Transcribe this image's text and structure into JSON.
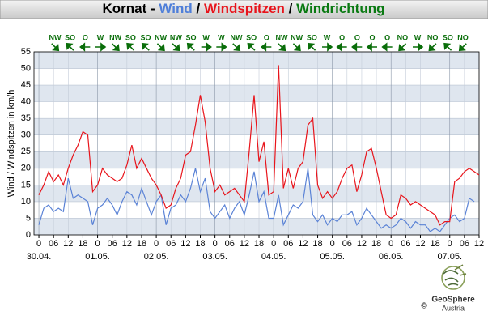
{
  "chart_data": {
    "type": "line",
    "title_parts": [
      {
        "text": "Kornat - ",
        "color": "#000000"
      },
      {
        "text": "Wind",
        "color": "#4f7fd9"
      },
      {
        "text": " / ",
        "color": "#000000"
      },
      {
        "text": "Windspitzen",
        "color": "#e8141b"
      },
      {
        "text": " / ",
        "color": "#000000"
      },
      {
        "text": "Windrichtung",
        "color": "#0a7a12"
      }
    ],
    "y_label": "Wind / Windspitzen in km/h",
    "x": [
      0,
      2,
      4,
      6,
      8,
      10,
      12,
      14,
      16,
      18,
      20,
      22,
      24,
      26,
      28,
      30,
      32,
      34,
      36,
      38,
      40,
      42,
      44,
      46,
      48,
      50,
      52,
      54,
      56,
      58,
      60,
      62,
      64,
      66,
      68,
      70,
      72,
      74,
      76,
      78,
      80,
      82,
      84,
      86,
      88,
      90,
      92,
      94,
      96,
      98,
      100,
      102,
      104,
      106,
      108,
      110,
      112,
      114,
      116,
      118,
      120,
      122,
      124,
      126,
      128,
      130,
      132,
      134,
      136,
      138,
      140,
      142,
      144,
      146,
      148,
      150,
      152,
      154,
      156,
      158,
      160,
      162,
      164,
      166,
      168,
      170,
      172,
      174,
      176,
      178,
      180
    ],
    "series": [
      {
        "name": "Windspitzen",
        "color": "#e8141b",
        "values": [
          12,
          15,
          19,
          16,
          18,
          15,
          20,
          24,
          27,
          31,
          30,
          13,
          15,
          20,
          18,
          17,
          16,
          17,
          21,
          27,
          20,
          23,
          20,
          17,
          15,
          12,
          8,
          9,
          14,
          17,
          24,
          25,
          33,
          42,
          34,
          20,
          13,
          15,
          12,
          13,
          14,
          12,
          10,
          25,
          42,
          22,
          28,
          12,
          13,
          51,
          14,
          20,
          14,
          20,
          22,
          33,
          35,
          15,
          11,
          13,
          11,
          13,
          17,
          20,
          21,
          13,
          18,
          25,
          26,
          20,
          13,
          6,
          5,
          6,
          12,
          11,
          9,
          10,
          9,
          8,
          7,
          6,
          3,
          4,
          4,
          16,
          17,
          19,
          20,
          19,
          18
        ]
      },
      {
        "name": "Wind",
        "color": "#5b83d6",
        "values": [
          3,
          8,
          9,
          7,
          8,
          7,
          17,
          11,
          12,
          11,
          10,
          3,
          8,
          9,
          11,
          9,
          6,
          10,
          13,
          12,
          9,
          14,
          10,
          6,
          10,
          12,
          3,
          8,
          9,
          12,
          10,
          14,
          20,
          13,
          17,
          7,
          5,
          7,
          9,
          5,
          8,
          10,
          6,
          12,
          19,
          10,
          13,
          5,
          5,
          12,
          3,
          6,
          9,
          8,
          10,
          20,
          6,
          4,
          6,
          3,
          5,
          4,
          6,
          6,
          7,
          3,
          5,
          8,
          6,
          4,
          2,
          3,
          2,
          3,
          5,
          4,
          2,
          4,
          3,
          3,
          1,
          2,
          1,
          3,
          5,
          6,
          4,
          5,
          11,
          10,
          null
        ]
      }
    ],
    "directions": [
      "NW",
      "SO",
      "O",
      "W",
      "NW",
      "SO",
      "SO",
      "NW",
      "NW",
      "SO",
      "W",
      "W",
      "NW",
      "SO",
      "O",
      "NW",
      "NW",
      "SO",
      "W",
      "O",
      "O",
      "O",
      "O",
      "NO",
      "W",
      "NO",
      "SO",
      "NO"
    ],
    "direction_color": "#0a6e0a",
    "xlim": [
      -2,
      180
    ],
    "xticks": [
      0,
      {
        "value": 6,
        "label": "06"
      },
      12,
      18,
      {
        "value": 24,
        "label": "0"
      },
      {
        "value": 30,
        "label": "06"
      },
      {
        "value": 36,
        "label": "12"
      },
      {
        "value": 42,
        "label": "18"
      },
      {
        "value": 48,
        "label": "0"
      },
      {
        "value": 54,
        "label": "06"
      },
      {
        "value": 60,
        "label": "12"
      },
      {
        "value": 66,
        "label": "18"
      },
      {
        "value": 72,
        "label": "0"
      },
      {
        "value": 78,
        "label": "06"
      },
      {
        "value": 84,
        "label": "12"
      },
      {
        "value": 90,
        "label": "18"
      },
      {
        "value": 96,
        "label": "0"
      },
      {
        "value": 102,
        "label": "06"
      },
      {
        "value": 108,
        "label": "12"
      },
      {
        "value": 114,
        "label": "18"
      },
      {
        "value": 120,
        "label": "0"
      },
      {
        "value": 126,
        "label": "06"
      },
      {
        "value": 132,
        "label": "12"
      },
      {
        "value": 138,
        "label": "18"
      },
      {
        "value": 144,
        "label": "0"
      },
      {
        "value": 150,
        "label": "06"
      },
      {
        "value": 156,
        "label": "12"
      },
      {
        "value": 162,
        "label": "18"
      },
      {
        "value": 168,
        "label": "0"
      },
      {
        "value": 174,
        "label": "06"
      },
      {
        "value": 180,
        "label": "12"
      }
    ],
    "day_ticks": [
      {
        "value": 0,
        "label": "30.04."
      },
      {
        "value": 24,
        "label": "01.05."
      },
      {
        "value": 48,
        "label": "02.05."
      },
      {
        "value": 72,
        "label": "03.05."
      },
      {
        "value": 96,
        "label": "04.05."
      },
      {
        "value": 120,
        "label": "05.05."
      },
      {
        "value": 144,
        "label": "06.05."
      },
      {
        "value": 168,
        "label": "07.05."
      }
    ],
    "ylim": [
      0,
      55
    ],
    "yticks": [
      0,
      5,
      10,
      15,
      20,
      25,
      30,
      35,
      40,
      45,
      50,
      55
    ],
    "grid": true,
    "logo": {
      "name": "GeoSphere",
      "sub": "Austria",
      "copyright": "©"
    }
  }
}
